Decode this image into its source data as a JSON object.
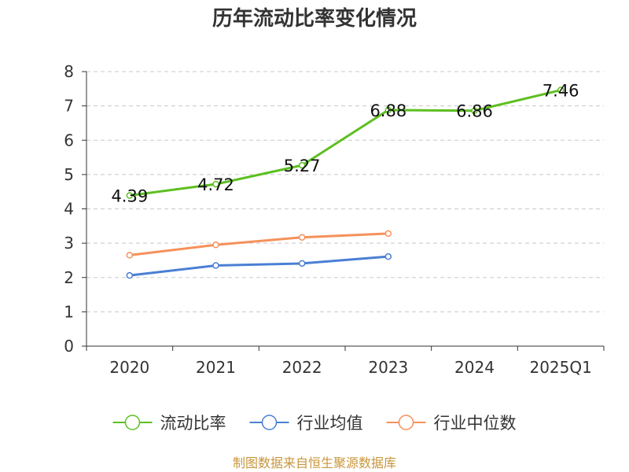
{
  "title": "历年流动比率变化情况",
  "source": "制图数据来自恒生聚源数据库",
  "chart_data": {
    "type": "line",
    "title": "历年流动比率变化情况",
    "xlabel": "",
    "ylabel": "",
    "categories": [
      "2020",
      "2021",
      "2022",
      "2023",
      "2024",
      "2025Q1"
    ],
    "ylim": [
      0,
      8
    ],
    "yticks": [
      "0",
      "1",
      "2",
      "3",
      "4",
      "5",
      "6",
      "7",
      "8"
    ],
    "grid": true,
    "legend_position": "bottom",
    "series": [
      {
        "name": "流动比率",
        "color": "#5dbf21",
        "values": [
          4.39,
          4.72,
          5.27,
          6.88,
          6.86,
          7.46
        ],
        "labels": [
          "4.39",
          "4.72",
          "5.27",
          "6.88",
          "6.86",
          "7.46"
        ]
      },
      {
        "name": "行业均值",
        "color": "#4a7fd4",
        "values": [
          2.06,
          2.35,
          2.41,
          2.61,
          null,
          null
        ]
      },
      {
        "name": "行业中位数",
        "color": "#f5915a",
        "values": [
          2.65,
          2.95,
          3.17,
          3.28,
          null,
          null
        ]
      }
    ]
  }
}
